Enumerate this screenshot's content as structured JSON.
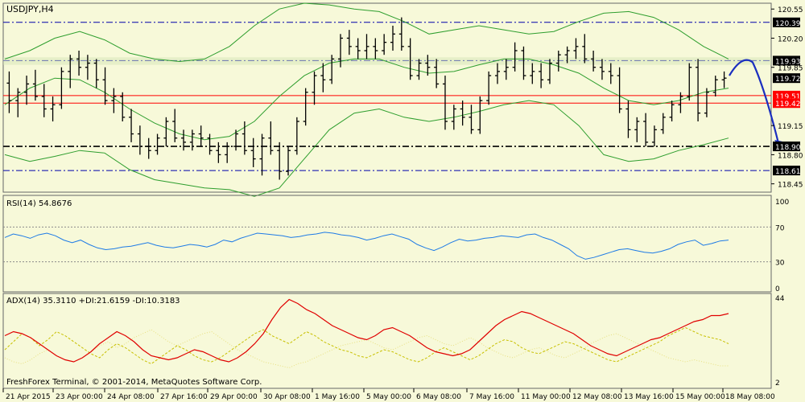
{
  "symbol": "USDJPY,H4",
  "watermark": "FreshForex Terminal, © 2001-2014, MetaQuotes Software Corp.",
  "colors": {
    "background": "#f7f9d9",
    "candle": "#000000",
    "bollinger": "#2e9e2e",
    "level_blue": "#0000aa",
    "level_red": "#ff0000",
    "level_black": "#000000",
    "forecast": "#1b2fbf",
    "rsi": "#1e7be6",
    "adx": "#e00000",
    "plus_di": "#c8c000",
    "minus_di": "#e8e080",
    "label_bg": "#000000",
    "label_text": "#ffffff",
    "red_label_bg": "#ff0000"
  },
  "chart_data": [
    {
      "type": "candlestick",
      "title": "USDJPY,H4",
      "ylim": [
        118.35,
        120.62
      ],
      "y_ticks": [
        "120.55",
        "120.20",
        "119.85",
        "119.15",
        "118.80",
        "118.45"
      ],
      "grid": false,
      "levels": [
        {
          "value": 120.39,
          "label": "120.39",
          "style": "dash-dot",
          "color": "blue"
        },
        {
          "value": 119.93,
          "label": "119.93",
          "style": "dash-dot",
          "color": "blue"
        },
        {
          "value": 119.51,
          "label": "119.51",
          "style": "solid",
          "color": "red"
        },
        {
          "value": 119.42,
          "label": "119.42",
          "style": "solid",
          "color": "red"
        },
        {
          "value": 118.9,
          "label": "118.90",
          "style": "dash-dot",
          "color": "black"
        },
        {
          "value": 118.61,
          "label": "118.61",
          "style": "dash-dot",
          "color": "blue"
        }
      ],
      "current_price": {
        "value": 119.72,
        "label": "119.72"
      },
      "forecast_path": [
        119.75,
        119.93,
        119.93,
        119.45,
        118.9
      ],
      "bollinger_bands": {
        "upper": [
          119.95,
          120.05,
          120.2,
          120.28,
          120.18,
          120.02,
          119.95,
          119.92,
          119.95,
          120.1,
          120.35,
          120.55,
          120.62,
          120.6,
          120.55,
          120.52,
          120.4,
          120.25,
          120.3,
          120.35,
          120.3,
          120.25,
          120.28,
          120.4,
          120.5,
          120.52,
          120.45,
          120.3,
          120.1,
          119.95
        ],
        "middle": [
          119.4,
          119.6,
          119.72,
          119.7,
          119.55,
          119.35,
          119.18,
          119.05,
          118.98,
          119.02,
          119.2,
          119.5,
          119.75,
          119.9,
          119.95,
          119.95,
          119.85,
          119.78,
          119.8,
          119.88,
          119.95,
          119.95,
          119.88,
          119.78,
          119.6,
          119.45,
          119.4,
          119.45,
          119.55,
          119.6
        ],
        "lower": [
          118.8,
          118.72,
          118.78,
          118.85,
          118.82,
          118.62,
          118.5,
          118.45,
          118.4,
          118.38,
          118.3,
          118.4,
          118.75,
          119.1,
          119.3,
          119.35,
          119.25,
          119.2,
          119.25,
          119.32,
          119.4,
          119.45,
          119.4,
          119.15,
          118.8,
          118.72,
          118.75,
          118.85,
          118.92,
          119.0
        ]
      },
      "ohlc": [
        [
          119.66,
          119.8,
          119.3,
          119.45
        ],
        [
          119.45,
          119.6,
          119.25,
          119.55
        ],
        [
          119.55,
          119.75,
          119.4,
          119.65
        ],
        [
          119.65,
          119.82,
          119.45,
          119.5
        ],
        [
          119.5,
          119.65,
          119.25,
          119.35
        ],
        [
          119.35,
          119.5,
          119.2,
          119.4
        ],
        [
          119.4,
          119.85,
          119.35,
          119.8
        ],
        [
          119.8,
          120.0,
          119.6,
          119.95
        ],
        [
          119.95,
          120.05,
          119.75,
          119.85
        ],
        [
          119.85,
          120.0,
          119.7,
          119.9
        ],
        [
          119.9,
          119.95,
          119.6,
          119.7
        ],
        [
          119.7,
          119.85,
          119.4,
          119.45
        ],
        [
          119.45,
          119.6,
          119.3,
          119.5
        ],
        [
          119.5,
          119.55,
          119.2,
          119.25
        ],
        [
          119.25,
          119.35,
          118.95,
          119.05
        ],
        [
          119.05,
          119.15,
          118.8,
          118.9
        ],
        [
          118.9,
          119.0,
          118.75,
          118.85
        ],
        [
          118.85,
          119.05,
          118.8,
          119.0
        ],
        [
          119.0,
          119.25,
          118.9,
          119.2
        ],
        [
          119.2,
          119.35,
          118.95,
          119.0
        ],
        [
          119.0,
          119.1,
          118.85,
          118.95
        ],
        [
          118.95,
          119.1,
          118.85,
          119.05
        ],
        [
          119.05,
          119.15,
          118.9,
          119.0
        ],
        [
          119.0,
          119.05,
          118.8,
          118.85
        ],
        [
          118.85,
          118.95,
          118.7,
          118.8
        ],
        [
          118.8,
          118.95,
          118.7,
          118.9
        ],
        [
          118.9,
          119.1,
          118.85,
          119.05
        ],
        [
          119.05,
          119.2,
          118.8,
          118.85
        ],
        [
          118.85,
          119.0,
          118.65,
          118.75
        ],
        [
          118.75,
          119.05,
          118.55,
          119.0
        ],
        [
          119.0,
          119.2,
          118.8,
          118.85
        ],
        [
          118.85,
          118.95,
          118.5,
          118.6
        ],
        [
          118.6,
          118.9,
          118.55,
          118.85
        ],
        [
          118.85,
          119.25,
          118.8,
          119.2
        ],
        [
          119.2,
          119.6,
          119.15,
          119.55
        ],
        [
          119.55,
          119.8,
          119.4,
          119.75
        ],
        [
          119.75,
          119.9,
          119.55,
          119.7
        ],
        [
          119.7,
          120.0,
          119.65,
          119.95
        ],
        [
          119.95,
          120.25,
          119.85,
          120.2
        ],
        [
          120.2,
          120.3,
          120.0,
          120.1
        ],
        [
          120.1,
          120.2,
          119.95,
          120.05
        ],
        [
          120.05,
          120.25,
          119.95,
          120.1
        ],
        [
          120.1,
          120.2,
          119.95,
          120.05
        ],
        [
          120.05,
          120.25,
          120.0,
          120.15
        ],
        [
          120.15,
          120.35,
          120.05,
          120.25
        ],
        [
          120.25,
          120.45,
          120.05,
          120.1
        ],
        [
          120.1,
          120.2,
          119.7,
          119.75
        ],
        [
          119.75,
          119.95,
          119.7,
          119.9
        ],
        [
          119.9,
          120.0,
          119.75,
          119.85
        ],
        [
          119.85,
          119.95,
          119.6,
          119.65
        ],
        [
          119.65,
          119.75,
          119.1,
          119.2
        ],
        [
          119.2,
          119.4,
          119.1,
          119.35
        ],
        [
          119.35,
          119.45,
          119.15,
          119.25
        ],
        [
          119.25,
          119.4,
          119.05,
          119.1
        ],
        [
          119.1,
          119.5,
          119.05,
          119.45
        ],
        [
          119.45,
          119.8,
          119.4,
          119.75
        ],
        [
          119.75,
          119.9,
          119.65,
          119.8
        ],
        [
          119.8,
          119.95,
          119.7,
          119.85
        ],
        [
          119.85,
          120.15,
          119.8,
          120.05
        ],
        [
          120.05,
          120.1,
          119.7,
          119.75
        ],
        [
          119.75,
          119.9,
          119.65,
          119.8
        ],
        [
          119.8,
          119.9,
          119.6,
          119.7
        ],
        [
          119.7,
          119.95,
          119.65,
          119.9
        ],
        [
          119.9,
          120.05,
          119.8,
          120.0
        ],
        [
          120.0,
          120.1,
          119.9,
          120.05
        ],
        [
          120.05,
          120.2,
          119.95,
          120.1
        ],
        [
          120.1,
          120.25,
          119.9,
          119.95
        ],
        [
          119.95,
          120.05,
          119.8,
          119.85
        ],
        [
          119.85,
          119.95,
          119.7,
          119.8
        ],
        [
          119.8,
          119.9,
          119.65,
          119.75
        ],
        [
          119.75,
          119.85,
          119.3,
          119.35
        ],
        [
          119.35,
          119.45,
          119.0,
          119.1
        ],
        [
          119.1,
          119.25,
          118.95,
          119.2
        ],
        [
          119.2,
          119.3,
          118.9,
          118.95
        ],
        [
          118.95,
          119.15,
          118.9,
          119.1
        ],
        [
          119.1,
          119.3,
          119.05,
          119.25
        ],
        [
          119.25,
          119.45,
          119.2,
          119.4
        ],
        [
          119.4,
          119.55,
          119.3,
          119.5
        ],
        [
          119.5,
          119.9,
          119.45,
          119.85
        ],
        [
          119.85,
          119.95,
          119.2,
          119.3
        ],
        [
          119.3,
          119.6,
          119.25,
          119.55
        ],
        [
          119.55,
          119.75,
          119.5,
          119.7
        ],
        [
          119.7,
          119.8,
          119.6,
          119.72
        ]
      ],
      "x_ticks": [
        "21 Apr 2015",
        "23 Apr 00:00",
        "24 Apr 08:00",
        "27 Apr 16:00",
        "29 Apr 00:00",
        "30 Apr 08:00",
        "1 May 16:00",
        "5 May 00:00",
        "6 May 08:00",
        "7 May 16:00",
        "11 May 00:00",
        "12 May 08:00",
        "13 May 16:00",
        "15 May 00:00",
        "18 May 08:00"
      ]
    },
    {
      "type": "line",
      "title": "RSI(14) 54.8676",
      "indicator": "RSI",
      "period": 14,
      "value": 54.8676,
      "ylim": [
        0,
        100
      ],
      "y_ticks": [
        "100",
        "70",
        "30",
        "0"
      ],
      "levels": [
        70,
        30
      ],
      "values": [
        58,
        62,
        60,
        57,
        61,
        63,
        60,
        55,
        52,
        55,
        50,
        46,
        44,
        45,
        47,
        48,
        50,
        52,
        49,
        47,
        46,
        48,
        50,
        49,
        47,
        50,
        55,
        53,
        57,
        60,
        63,
        62,
        61,
        60,
        58,
        59,
        61,
        62,
        64,
        63,
        61,
        60,
        58,
        55,
        57,
        60,
        62,
        59,
        56,
        50,
        46,
        43,
        47,
        52,
        56,
        54,
        55,
        57,
        58,
        60,
        59,
        58,
        61,
        62,
        58,
        55,
        50,
        45,
        37,
        33,
        35,
        38,
        41,
        44,
        45,
        43,
        41,
        40,
        42,
        45,
        50,
        53,
        55,
        49,
        51,
        54,
        55
      ]
    },
    {
      "type": "line",
      "title": "ADX(14) 35.3110 +DI:21.6159 -DI:10.3183",
      "indicator": "ADX",
      "adx": 35.311,
      "plus_di": 21.6159,
      "minus_di": 10.3183,
      "ylim": [
        2,
        44
      ],
      "y_ticks": [
        "44",
        "2"
      ],
      "series": [
        {
          "name": "ADX",
          "values": [
            25,
            27,
            26,
            24,
            21,
            18,
            15,
            13,
            12,
            14,
            17,
            21,
            24,
            27,
            25,
            22,
            18,
            15,
            14,
            13,
            14,
            16,
            18,
            17,
            15,
            13,
            12,
            14,
            17,
            21,
            26,
            33,
            39,
            43,
            41,
            38,
            36,
            33,
            30,
            28,
            26,
            24,
            23,
            25,
            28,
            29,
            27,
            25,
            22,
            19,
            17,
            16,
            15,
            16,
            18,
            22,
            26,
            30,
            33,
            35,
            37,
            36,
            34,
            32,
            30,
            28,
            26,
            23,
            20,
            18,
            16,
            15,
            17,
            19,
            21,
            23,
            24,
            26,
            28,
            30,
            32,
            33,
            35,
            35,
            36
          ]
        },
        {
          "name": "+DI",
          "values": [
            18,
            22,
            26,
            24,
            20,
            23,
            27,
            25,
            22,
            19,
            16,
            14,
            18,
            21,
            19,
            16,
            13,
            11,
            14,
            17,
            20,
            18,
            15,
            13,
            12,
            14,
            17,
            20,
            23,
            26,
            28,
            25,
            23,
            21,
            24,
            27,
            25,
            22,
            20,
            18,
            17,
            15,
            14,
            16,
            18,
            17,
            15,
            13,
            12,
            14,
            17,
            19,
            17,
            15,
            13,
            15,
            18,
            21,
            23,
            22,
            19,
            17,
            16,
            18,
            20,
            22,
            21,
            19,
            17,
            15,
            13,
            12,
            14,
            16,
            18,
            20,
            22,
            25,
            27,
            29,
            27,
            25,
            24,
            23,
            21
          ]
        },
        {
          "name": "-DI",
          "values": [
            14,
            12,
            11,
            13,
            16,
            18,
            15,
            13,
            12,
            14,
            17,
            20,
            22,
            19,
            21,
            24,
            26,
            28,
            25,
            22,
            20,
            22,
            24,
            26,
            27,
            24,
            21,
            18,
            16,
            14,
            12,
            11,
            10,
            9,
            11,
            12,
            14,
            16,
            18,
            20,
            21,
            22,
            23,
            21,
            19,
            18,
            20,
            22,
            24,
            25,
            23,
            21,
            20,
            22,
            24,
            22,
            19,
            17,
            15,
            14,
            16,
            18,
            19,
            17,
            15,
            14,
            16,
            18,
            21,
            23,
            25,
            26,
            24,
            22,
            20,
            18,
            16,
            14,
            13,
            12,
            13,
            12,
            11,
            10,
            10
          ]
        }
      ]
    }
  ]
}
